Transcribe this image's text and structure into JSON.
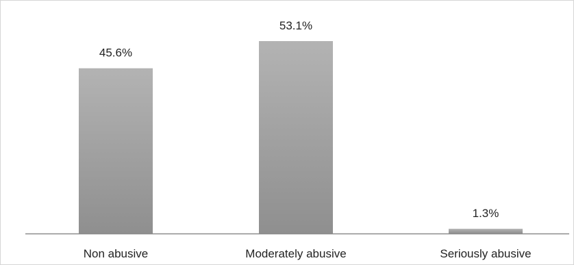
{
  "chart_data": {
    "type": "bar",
    "categories": [
      "Non abusive",
      "Moderately abusive",
      "Seriously abusive"
    ],
    "values": [
      45.6,
      53.1,
      1.3
    ],
    "data_labels": [
      "45.6%",
      "53.1%",
      "1.3%"
    ],
    "title": "",
    "xlabel": "",
    "ylabel": "",
    "ylim": [
      0,
      60
    ],
    "grid": false,
    "legend": "none",
    "colors": {
      "bar_top": "#b3b3b3",
      "bar_bottom": "#8f8f8f",
      "axis": "#8c8c8c",
      "text": "#222222"
    }
  }
}
